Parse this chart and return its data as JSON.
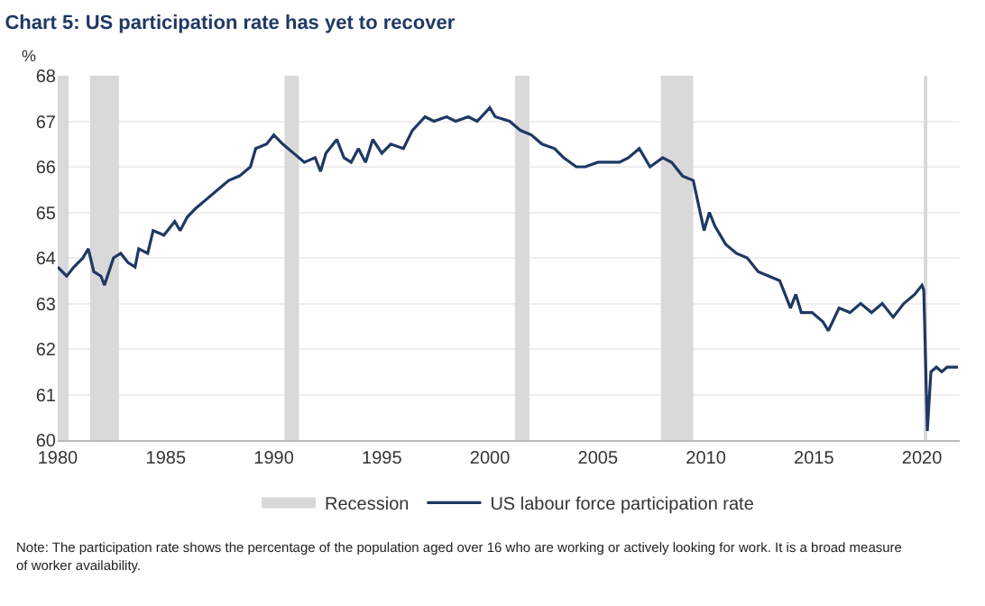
{
  "chart_data": {
    "type": "line",
    "title": "Chart 5: US participation rate has yet to recover",
    "ylabel": "%",
    "x": [
      "1980-01",
      "1980-06",
      "1980-10",
      "1981-03",
      "1981-06",
      "1981-09",
      "1982-01",
      "1982-03",
      "1982-08",
      "1982-12",
      "1983-04",
      "1983-08",
      "1983-10",
      "1984-03",
      "1984-06",
      "1984-12",
      "1985-06",
      "1985-09",
      "1986-01",
      "1986-06",
      "1986-12",
      "1987-06",
      "1987-12",
      "1988-06",
      "1988-12",
      "1989-03",
      "1989-09",
      "1990-01",
      "1990-06",
      "1990-12",
      "1991-06",
      "1991-12",
      "1992-03",
      "1992-06",
      "1992-12",
      "1993-04",
      "1993-08",
      "1993-12",
      "1994-04",
      "1994-08",
      "1995-01",
      "1995-06",
      "1996-01",
      "1996-06",
      "1997-01",
      "1997-06",
      "1998-01",
      "1998-06",
      "1999-01",
      "1999-06",
      "2000-01",
      "2000-04",
      "2000-12",
      "2001-06",
      "2001-12",
      "2002-06",
      "2003-01",
      "2003-06",
      "2004-01",
      "2004-06",
      "2005-01",
      "2005-06",
      "2006-01",
      "2006-06",
      "2006-12",
      "2007-06",
      "2008-01",
      "2008-06",
      "2008-12",
      "2009-06",
      "2009-12",
      "2010-03",
      "2010-06",
      "2010-12",
      "2011-06",
      "2011-12",
      "2012-06",
      "2012-12",
      "2013-06",
      "2013-12",
      "2014-03",
      "2014-06",
      "2014-12",
      "2015-06",
      "2015-09",
      "2016-03",
      "2016-09",
      "2017-03",
      "2017-09",
      "2018-03",
      "2018-09",
      "2019-03",
      "2019-09",
      "2020-01",
      "2020-02",
      "2020-04",
      "2020-06",
      "2020-09",
      "2020-12",
      "2021-03",
      "2021-06",
      "2021-09"
    ],
    "series": [
      {
        "name": "US labour force participation rate",
        "color": "#1f3864",
        "values": [
          63.8,
          63.6,
          63.8,
          64.0,
          64.2,
          63.7,
          63.6,
          63.4,
          64.0,
          64.1,
          63.9,
          63.8,
          64.2,
          64.1,
          64.6,
          64.5,
          64.8,
          64.6,
          64.9,
          65.1,
          65.3,
          65.5,
          65.7,
          65.8,
          66.0,
          66.4,
          66.5,
          66.7,
          66.5,
          66.3,
          66.1,
          66.2,
          65.9,
          66.3,
          66.6,
          66.2,
          66.1,
          66.4,
          66.1,
          66.6,
          66.3,
          66.5,
          66.4,
          66.8,
          67.1,
          67.0,
          67.1,
          67.0,
          67.1,
          67.0,
          67.3,
          67.1,
          67.0,
          66.8,
          66.7,
          66.5,
          66.4,
          66.2,
          66.0,
          66.0,
          66.1,
          66.1,
          66.1,
          66.2,
          66.4,
          66.0,
          66.2,
          66.1,
          65.8,
          65.7,
          64.6,
          65.0,
          64.7,
          64.3,
          64.1,
          64.0,
          63.7,
          63.6,
          63.5,
          62.9,
          63.2,
          62.8,
          62.8,
          62.6,
          62.4,
          62.9,
          62.8,
          63.0,
          62.8,
          63.0,
          62.7,
          63.0,
          63.2,
          63.4,
          63.3,
          60.2,
          61.5,
          61.6,
          61.5,
          61.6,
          61.6,
          61.6
        ]
      }
    ],
    "xlim": [
      "1980-01",
      "2021-10"
    ],
    "xticks": [
      "1980",
      "1985",
      "1990",
      "1995",
      "2000",
      "2005",
      "2010",
      "2015",
      "2020"
    ],
    "ylim": [
      60,
      68
    ],
    "yticks": [
      60,
      61,
      62,
      63,
      64,
      65,
      66,
      67,
      68
    ],
    "bands": [
      {
        "axis": "x",
        "from": "1980-01",
        "to": "1980-07",
        "label": "Recession",
        "color": "#d9d9d9"
      },
      {
        "axis": "x",
        "from": "1981-07",
        "to": "1982-11",
        "color": "#d9d9d9"
      },
      {
        "axis": "x",
        "from": "1990-07",
        "to": "1991-03",
        "color": "#d9d9d9"
      },
      {
        "axis": "x",
        "from": "2001-03",
        "to": "2001-11",
        "color": "#d9d9d9"
      },
      {
        "axis": "x",
        "from": "2007-12",
        "to": "2009-06",
        "color": "#d9d9d9"
      },
      {
        "axis": "x",
        "from": "2020-02",
        "to": "2020-04",
        "color": "#d9d9d9"
      }
    ],
    "annotations": [
      "Note: The participation rate shows the percentage of the population aged over 16 who are working or actively looking for work. It is a broad measure of worker availability."
    ],
    "grid": "y",
    "legend": "bottom",
    "marker": "none",
    "line_style": "solid"
  }
}
